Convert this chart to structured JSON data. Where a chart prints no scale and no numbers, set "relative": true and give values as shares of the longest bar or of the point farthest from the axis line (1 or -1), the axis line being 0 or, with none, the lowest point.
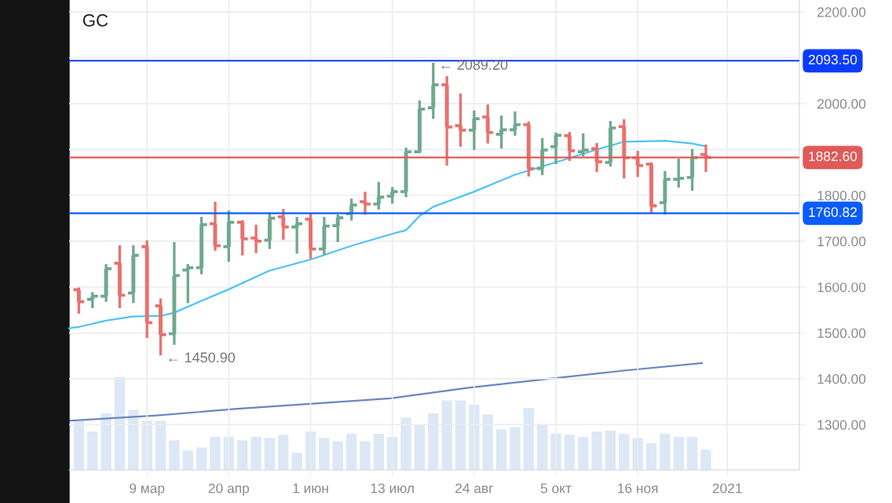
{
  "chart_data": [
    {
      "type": "candlestick",
      "title": "GC",
      "x": [
        "2020-02-03",
        "2020-02-10",
        "2020-02-17",
        "2020-02-24",
        "2020-03-02",
        "2020-03-09",
        "2020-03-16",
        "2020-03-23",
        "2020-03-30",
        "2020-04-06",
        "2020-04-13",
        "2020-04-20",
        "2020-04-27",
        "2020-05-04",
        "2020-05-11",
        "2020-05-18",
        "2020-05-25",
        "2020-06-01",
        "2020-06-08",
        "2020-06-15",
        "2020-06-22",
        "2020-06-29",
        "2020-07-06",
        "2020-07-13",
        "2020-07-20",
        "2020-07-27",
        "2020-08-03",
        "2020-08-10",
        "2020-08-17",
        "2020-08-24",
        "2020-08-31",
        "2020-09-07",
        "2020-09-14",
        "2020-09-21",
        "2020-09-28",
        "2020-10-05",
        "2020-10-12",
        "2020-10-19",
        "2020-10-26",
        "2020-11-02",
        "2020-11-09",
        "2020-11-16",
        "2020-11-23",
        "2020-11-30",
        "2020-12-07",
        "2020-12-14",
        "2020-12-21"
      ],
      "ohlc": [
        [
          1594,
          1599,
          1542,
          1568
        ],
        [
          1573,
          1589,
          1554,
          1580
        ],
        [
          1580,
          1650,
          1568,
          1640
        ],
        [
          1652,
          1691,
          1554,
          1582
        ],
        [
          1587,
          1691,
          1565,
          1669
        ],
        [
          1688,
          1702,
          1489,
          1522
        ],
        [
          1559,
          1575,
          1450.9,
          1496
        ],
        [
          1498,
          1698,
          1474,
          1625
        ],
        [
          1637,
          1650,
          1565,
          1642
        ],
        [
          1642,
          1753,
          1628,
          1736
        ],
        [
          1738,
          1786,
          1679,
          1690
        ],
        [
          1688,
          1767,
          1655,
          1741
        ],
        [
          1741,
          1746,
          1669,
          1705
        ],
        [
          1707,
          1736,
          1674,
          1700
        ],
        [
          1702,
          1763,
          1683,
          1750
        ],
        [
          1753,
          1770,
          1703,
          1731
        ],
        [
          1731,
          1753,
          1673,
          1738
        ],
        [
          1748,
          1760,
          1662,
          1683
        ],
        [
          1683,
          1753,
          1669,
          1733
        ],
        [
          1734,
          1758,
          1698,
          1751
        ],
        [
          1760,
          1793,
          1745,
          1779
        ],
        [
          1786,
          1808,
          1758,
          1781
        ],
        [
          1781,
          1829,
          1769,
          1796
        ],
        [
          1798,
          1818,
          1782,
          1808
        ],
        [
          1808,
          1904,
          1796,
          1895
        ],
        [
          1895,
          2007,
          1892,
          1988
        ],
        [
          1991,
          2089.2,
          1967,
          2041
        ],
        [
          2041,
          2060,
          1865,
          1949
        ],
        [
          1952,
          2022,
          1906,
          1942
        ],
        [
          1942,
          1985,
          1899,
          1967
        ],
        [
          1971,
          1998,
          1913,
          1937
        ],
        [
          1933,
          1974,
          1902,
          1943
        ],
        [
          1943,
          1983,
          1930,
          1954
        ],
        [
          1954,
          1961,
          1841,
          1858
        ],
        [
          1858,
          1925,
          1844,
          1899
        ],
        [
          1906,
          1937,
          1868,
          1931
        ],
        [
          1930,
          1938,
          1875,
          1897
        ],
        [
          1895,
          1935,
          1885,
          1899
        ],
        [
          1902,
          1914,
          1851,
          1873
        ],
        [
          1872,
          1962,
          1863,
          1947
        ],
        [
          1950,
          1966,
          1837,
          1882
        ],
        [
          1882,
          1897,
          1840,
          1865
        ],
        [
          1868,
          1872,
          1760,
          1777
        ],
        [
          1784,
          1853,
          1758,
          1835
        ],
        [
          1835,
          1880,
          1817,
          1837
        ],
        [
          1839,
          1901,
          1810,
          1882
        ],
        [
          1889,
          1911,
          1851,
          1882.6
        ]
      ],
      "colors": [
        "#e8716d",
        "#6fa98f",
        "#6fa98f",
        "#e8716d",
        "#6fa98f",
        "#e8716d",
        "#e8716d",
        "#6fa98f",
        "#6fa98f",
        "#6fa98f",
        "#e8716d",
        "#6fa98f",
        "#e8716d",
        "#e8716d",
        "#6fa98f",
        "#e8716d",
        "#6fa98f",
        "#e8716d",
        "#6fa98f",
        "#6fa98f",
        "#6fa98f",
        "#e8716d",
        "#6fa98f",
        "#6fa98f",
        "#6fa98f",
        "#6fa98f",
        "#6fa98f",
        "#e8716d",
        "#e8716d",
        "#6fa98f",
        "#e8716d",
        "#6fa98f",
        "#6fa98f",
        "#e8716d",
        "#6fa98f",
        "#6fa98f",
        "#e8716d",
        "#6fa98f",
        "#e8716d",
        "#6fa98f",
        "#e8716d",
        "#e8716d",
        "#e8716d",
        "#6fa98f",
        "#6fa98f",
        "#6fa98f",
        "#e8716d"
      ],
      "series": [
        {
          "type": "line",
          "color": "#4fc3f7",
          "x": [
            "2020-01-29",
            "2020-02-03",
            "2020-02-17",
            "2020-03-02",
            "2020-03-16",
            "2020-03-23",
            "2020-04-06",
            "2020-04-20",
            "2020-05-11",
            "2020-06-01",
            "2020-06-22",
            "2020-07-13",
            "2020-07-20",
            "2020-07-27",
            "2020-08-03",
            "2020-08-24",
            "2020-09-14",
            "2020-10-05",
            "2020-10-26",
            "2020-11-09",
            "2020-11-30",
            "2020-12-14",
            "2020-12-21"
          ],
          "values": [
            1510,
            1513,
            1527,
            1536,
            1537,
            1544,
            1570,
            1595,
            1636,
            1660,
            1690,
            1716,
            1724,
            1755,
            1775,
            1808,
            1845,
            1872,
            1900,
            1917,
            1919,
            1913,
            1907
          ]
        }
      ],
      "xlim": [
        "2020-01-29",
        "2021-02-07"
      ],
      "xticks": [
        {
          "value": "2020-03-09",
          "label": "9 мар"
        },
        {
          "value": "2020-04-20",
          "label": "20 апр"
        },
        {
          "value": "2020-06-01",
          "label": "1 июн"
        },
        {
          "value": "2020-07-13",
          "label": "13 июл"
        },
        {
          "value": "2020-08-24",
          "label": "24 авг"
        },
        {
          "value": "2020-10-05",
          "label": "5 окт"
        },
        {
          "value": "2020-11-16",
          "label": "16 ноя"
        },
        {
          "value": "2021-01-01",
          "label": "2021"
        }
      ],
      "ylim": [
        1201,
        2226
      ],
      "yticks": [
        {
          "value": 1300,
          "label": "1300.00"
        },
        {
          "value": 1400,
          "label": "1400.00"
        },
        {
          "value": 1500,
          "label": "1500.00"
        },
        {
          "value": 1600,
          "label": "1600.00"
        },
        {
          "value": 1700,
          "label": "1700.00"
        },
        {
          "value": 1800,
          "label": "1800.00"
        },
        {
          "value": 1900,
          "label": null
        },
        {
          "value": 2000,
          "label": "2000.00"
        },
        {
          "value": 2100,
          "label": null
        },
        {
          "value": 2200,
          "label": "2200.00"
        }
      ],
      "grid": true,
      "ref_lines": [
        {
          "axis": "y",
          "value": 2093.5,
          "label": "2093.50",
          "color": "#0a3cff"
        },
        {
          "axis": "y",
          "value": 1882.6,
          "label": "1882.60",
          "color": "#e05a58"
        },
        {
          "axis": "y",
          "value": 1760.82,
          "label": "1760.82",
          "color": "#0a5cff"
        }
      ],
      "annotations": [
        {
          "text": "← 2089.20",
          "x": "2020-08-03",
          "y": 2089.2
        },
        {
          "text": "← 1450.90",
          "x": "2020-03-16",
          "y": 1450.9
        }
      ]
    },
    {
      "type": "bar",
      "relative": true,
      "tick_labels": false,
      "x": [
        "2020-02-03",
        "2020-02-10",
        "2020-02-17",
        "2020-02-24",
        "2020-03-02",
        "2020-03-09",
        "2020-03-16",
        "2020-03-23",
        "2020-03-30",
        "2020-04-06",
        "2020-04-13",
        "2020-04-20",
        "2020-04-27",
        "2020-05-04",
        "2020-05-11",
        "2020-05-18",
        "2020-05-25",
        "2020-06-01",
        "2020-06-08",
        "2020-06-15",
        "2020-06-22",
        "2020-06-29",
        "2020-07-06",
        "2020-07-13",
        "2020-07-20",
        "2020-07-27",
        "2020-08-03",
        "2020-08-10",
        "2020-08-17",
        "2020-08-24",
        "2020-08-31",
        "2020-09-07",
        "2020-09-14",
        "2020-09-21",
        "2020-09-28",
        "2020-10-05",
        "2020-10-12",
        "2020-10-19",
        "2020-10-26",
        "2020-11-02",
        "2020-11-09",
        "2020-11-16",
        "2020-11-23",
        "2020-11-30",
        "2020-12-07",
        "2020-12-14",
        "2020-12-21"
      ],
      "xlim": [
        "2020-01-29",
        "2021-02-07"
      ],
      "series": [
        {
          "type": "bar",
          "color": "#dce8f5",
          "values": [
            0.46,
            0.36,
            0.53,
            0.87,
            0.56,
            0.46,
            0.46,
            0.28,
            0.18,
            0.21,
            0.31,
            0.31,
            0.28,
            0.31,
            0.3,
            0.33,
            0.16,
            0.36,
            0.3,
            0.27,
            0.34,
            0.27,
            0.34,
            0.31,
            0.49,
            0.42,
            0.53,
            0.65,
            0.65,
            0.61,
            0.52,
            0.38,
            0.4,
            0.58,
            0.42,
            0.34,
            0.33,
            0.31,
            0.36,
            0.37,
            0.34,
            0.3,
            0.25,
            0.34,
            0.31,
            0.31,
            0.19
          ]
        },
        {
          "type": "line",
          "color": "#6a86c0",
          "x": [
            "2020-01-29",
            "2020-03-14",
            "2020-04-23",
            "2020-06-02",
            "2020-07-12",
            "2020-08-01",
            "2020-08-21",
            "2020-09-30",
            "2020-11-09",
            "2020-12-19"
          ],
          "values": [
            0.46,
            0.51,
            0.57,
            0.62,
            0.67,
            0.72,
            0.77,
            0.85,
            0.93,
            1.0
          ]
        }
      ]
    }
  ]
}
